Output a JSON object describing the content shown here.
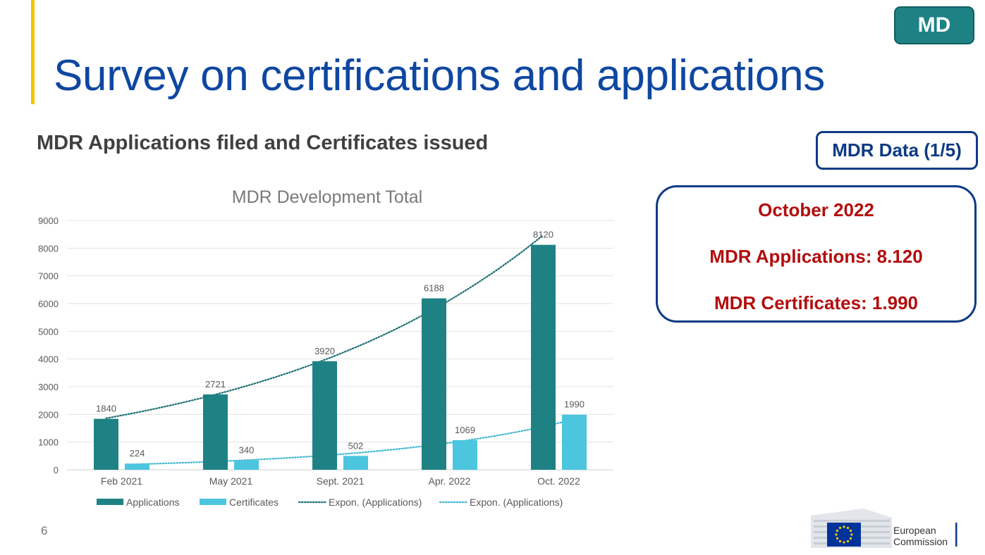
{
  "slide": {
    "title": "Survey on certifications and applications",
    "badge": "MD",
    "subtitle": "MDR Applications filed and Certificates issued",
    "data_label": "MDR Data (1/5)",
    "summary": {
      "heading": "October 2022",
      "applications": "MDR Applications: 8.120",
      "certificates": "MDR Certificates: 1.990"
    },
    "page_number": "6",
    "logo_text": [
      "European",
      "Commission"
    ],
    "accent_color": "#f5c400"
  },
  "chart_data": {
    "type": "bar",
    "title": "MDR Development Total",
    "categories": [
      "Feb 2021",
      "May 2021",
      "Sept. 2021",
      "Apr. 2022",
      "Oct. 2022"
    ],
    "series": [
      {
        "name": "Applications",
        "values": [
          1840,
          2721,
          3920,
          6188,
          8120
        ],
        "color": "#1e8285"
      },
      {
        "name": "Certificates",
        "values": [
          224,
          340,
          502,
          1069,
          1990
        ],
        "color": "#4cc5df"
      }
    ],
    "trendlines": [
      {
        "name": "Expon. (Applications)",
        "type": "exponential",
        "of": "Applications",
        "color": "#1a6e70"
      },
      {
        "name": "Expon. (Applications)",
        "type": "exponential",
        "of": "Certificates",
        "color": "#3fb6d1"
      }
    ],
    "ylim": [
      0,
      9000
    ],
    "yticks": [
      0,
      1000,
      2000,
      3000,
      4000,
      5000,
      6000,
      7000,
      8000,
      9000
    ],
    "grid": true,
    "legend": "bottom"
  }
}
